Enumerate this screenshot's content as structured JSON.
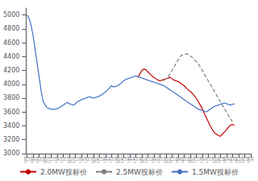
{
  "chart_data": {
    "type": "line",
    "categories": [
      "10年\n1月",
      null,
      null,
      "10年\n4月",
      null,
      null,
      "10年\n7月",
      null,
      null,
      "10年\n10月",
      null,
      null,
      "11年\n1月",
      null,
      null,
      "11年\n4月",
      null,
      null,
      "11年\n7月",
      null,
      null,
      "11年\n10月",
      null,
      null,
      "12年\n1月",
      null,
      null,
      "12年\n4月",
      null,
      null,
      "12年\n7月",
      null,
      null,
      "12年\n10月",
      null,
      null,
      "13年\n1月",
      null,
      null,
      "13年\n4月",
      null,
      null,
      "13年\n7月",
      null,
      null,
      "13年\n10月",
      null,
      null,
      "14年\n1月",
      null,
      null,
      "14年\n4月",
      null,
      null,
      "14年\n7月",
      null,
      null,
      "14年\n10月",
      null,
      null,
      "15年\n1月",
      null,
      null,
      "15年\n4月",
      null,
      null,
      "15年\n7月",
      null,
      null,
      "15年\n10月",
      null,
      null,
      "16年\n1月",
      null,
      null,
      "16年\n4月",
      null,
      null,
      "16年\n7月",
      null,
      null,
      "16年\n10月",
      null,
      null,
      "17年\n1月",
      null,
      null,
      "17年\n4月",
      null,
      null,
      "17年\n7月",
      null,
      null,
      "17年\n10月",
      null,
      null,
      "18年\n1月",
      null,
      null,
      "18年\n4月",
      null,
      null,
      "18年\n7月",
      null,
      null,
      "18年\n10月",
      null,
      null,
      "19年\n1月",
      null,
      null,
      "19年\n4月"
    ],
    "series": [
      {
        "name": "2.0MW投标价",
        "color": "#c00000",
        "line_style": "solid",
        "values": [
          null,
          null,
          null,
          null,
          null,
          null,
          null,
          null,
          null,
          null,
          null,
          null,
          null,
          null,
          null,
          null,
          null,
          null,
          null,
          null,
          null,
          null,
          null,
          null,
          null,
          null,
          null,
          null,
          null,
          null,
          null,
          null,
          null,
          null,
          null,
          null,
          null,
          null,
          null,
          null,
          null,
          null,
          null,
          null,
          null,
          null,
          null,
          null,
          null,
          null,
          null,
          null,
          null,
          null,
          null,
          4100,
          4150,
          4200,
          4220,
          4210,
          4180,
          4150,
          4120,
          4100,
          4080,
          4060,
          4050,
          4060,
          4070,
          4080,
          4090,
          4100,
          4080,
          4060,
          4050,
          4040,
          4020,
          4000,
          3980,
          3950,
          3920,
          3900,
          3870,
          3840,
          3800,
          3750,
          3700,
          3650,
          3580,
          3520,
          3460,
          3400,
          3350,
          3300,
          3280,
          3260,
          3250,
          3280,
          3310,
          3340,
          3380,
          3410,
          3420,
          3410,
          null,
          null,
          null,
          null,
          null,
          null,
          null,
          null
        ]
      },
      {
        "name": "2.5MW投标价",
        "color": "#808080",
        "line_style": "dashed",
        "values": [
          null,
          null,
          null,
          null,
          null,
          null,
          null,
          null,
          null,
          null,
          null,
          null,
          null,
          null,
          null,
          null,
          null,
          null,
          null,
          null,
          null,
          null,
          null,
          null,
          null,
          null,
          null,
          null,
          null,
          null,
          null,
          null,
          null,
          null,
          null,
          null,
          null,
          null,
          null,
          null,
          null,
          null,
          null,
          null,
          null,
          null,
          null,
          null,
          null,
          null,
          null,
          null,
          null,
          null,
          null,
          null,
          null,
          null,
          null,
          null,
          null,
          null,
          null,
          null,
          null,
          null,
          null,
          null,
          4050,
          4080,
          4100,
          4150,
          4200,
          4250,
          4300,
          4350,
          4400,
          4420,
          4430,
          4440,
          4430,
          4410,
          4390,
          4360,
          4330,
          4300,
          4250,
          4200,
          4150,
          4100,
          4050,
          4000,
          3950,
          3900,
          3850,
          3800,
          3750,
          3700,
          3650,
          3600,
          3550,
          3500,
          3464,
          null,
          null,
          null,
          null,
          null,
          null,
          null,
          null,
          null
        ]
      },
      {
        "name": "1.5MW投标价",
        "color": "#4472c4",
        "line_style": "solid",
        "values": [
          5000,
          4950,
          4850,
          4700,
          4500,
          4300,
          4100,
          3900,
          3750,
          3700,
          3660,
          3650,
          3640,
          3640,
          3640,
          3650,
          3660,
          3680,
          3700,
          3720,
          3740,
          3720,
          3710,
          3700,
          3720,
          3750,
          3760,
          3780,
          3790,
          3800,
          3810,
          3820,
          3810,
          3800,
          3810,
          3820,
          3830,
          3850,
          3870,
          3890,
          3920,
          3950,
          3980,
          3960,
          3970,
          3980,
          4000,
          4020,
          4050,
          4070,
          4080,
          4090,
          4100,
          4110,
          4120,
          4110,
          4100,
          4090,
          4080,
          4070,
          4060,
          4050,
          4040,
          4030,
          4020,
          4010,
          4000,
          3990,
          3980,
          3960,
          3940,
          3920,
          3900,
          3880,
          3860,
          3840,
          3820,
          3800,
          3780,
          3760,
          3740,
          3720,
          3700,
          3680,
          3660,
          3640,
          3630,
          3620,
          3610,
          3600,
          3620,
          3640,
          3660,
          3680,
          3690,
          3700,
          3710,
          3720,
          3730,
          3720,
          3710,
          3700,
          3710,
          3720,
          null,
          null,
          null,
          null,
          null,
          null,
          null,
          null
        ]
      }
    ],
    "ylim": [
      3000,
      5100
    ],
    "yticks": [
      3000,
      3200,
      3400,
      3600,
      3800,
      4000,
      4200,
      4400,
      4600,
      4800,
      5000
    ],
    "grid": false,
    "legend": "bottom"
  }
}
